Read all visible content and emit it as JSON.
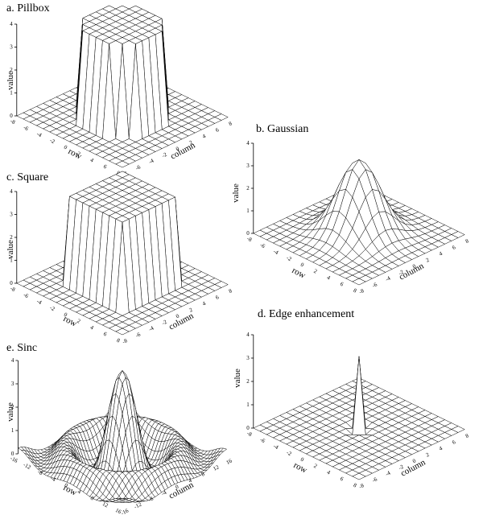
{
  "figure": {
    "panels": [
      {
        "id": "a",
        "title": "a.  Pillbox",
        "surface": "pillbox",
        "zlabel": "value",
        "xlabel": "row",
        "ylabel": "column",
        "z_ticks": [
          "0",
          "1",
          "2",
          "3",
          "4"
        ],
        "row_ticks": [
          "-8",
          "-6",
          "-4",
          "-2",
          "0",
          "2",
          "4",
          "6",
          "8"
        ],
        "col_ticks": [
          "-8",
          "-6",
          "-4",
          "-2",
          "0",
          "2",
          "4",
          "6",
          "8"
        ],
        "range": 8,
        "peak": 4
      },
      {
        "id": "b",
        "title": "b.  Gaussian",
        "surface": "gaussian",
        "zlabel": "value",
        "xlabel": "row",
        "ylabel": "column",
        "z_ticks": [
          "0",
          "1",
          "2",
          "3",
          "4"
        ],
        "row_ticks": [
          "-8",
          "-6",
          "-4",
          "-2",
          "0",
          "2",
          "4",
          "6",
          "8"
        ],
        "col_ticks": [
          "-8",
          "-6",
          "-4",
          "-2",
          "0",
          "2",
          "4",
          "6",
          "8"
        ],
        "range": 8,
        "peak": 3.3
      },
      {
        "id": "c",
        "title": "c.  Square",
        "surface": "square",
        "zlabel": "value",
        "xlabel": "row",
        "ylabel": "column",
        "z_ticks": [
          "0",
          "1",
          "2",
          "3",
          "4"
        ],
        "row_ticks": [
          "-8",
          "-6",
          "-4",
          "-2",
          "0",
          "2",
          "4",
          "6",
          "8"
        ],
        "col_ticks": [
          "-8",
          "-6",
          "-4",
          "-2",
          "0",
          "2",
          "4",
          "6",
          "8"
        ],
        "range": 8,
        "peak": 3.8
      },
      {
        "id": "d",
        "title": "d.  Edge enhancement",
        "surface": "edge",
        "zlabel": "value",
        "xlabel": "row",
        "ylabel": "column",
        "z_ticks": [
          "0",
          "1",
          "2",
          "3",
          "4"
        ],
        "row_ticks": [
          "-8",
          "-6",
          "-4",
          "-2",
          "0",
          "2",
          "4",
          "6",
          "8"
        ],
        "col_ticks": [
          "-8",
          "-6",
          "-4",
          "-2",
          "0",
          "2",
          "4",
          "6",
          "8"
        ],
        "range": 8,
        "peak": 3.1
      },
      {
        "id": "e",
        "title": "e.  Sinc",
        "surface": "sinc",
        "zlabel": "value",
        "xlabel": "row",
        "ylabel": "column",
        "z_ticks": [
          "0",
          "1",
          "2",
          "3",
          "4"
        ],
        "row_ticks": [
          "-16",
          "-12",
          "-8",
          "-4",
          "0",
          "4",
          "8",
          "12",
          "16"
        ],
        "col_ticks": [
          "-16",
          "-12",
          "-8",
          "-4",
          "0",
          "4",
          "8",
          "12",
          "16"
        ],
        "range": 16,
        "peak": 3.6
      }
    ]
  }
}
